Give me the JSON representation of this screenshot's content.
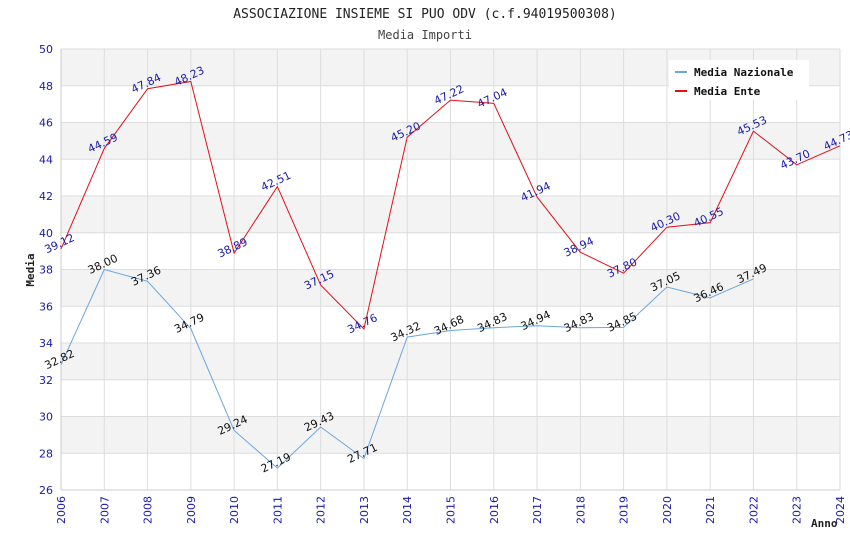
{
  "chart_data": {
    "type": "line",
    "title": "ASSOCIAZIONE INSIEME SI PUO ODV (c.f.94019500308)",
    "subtitle": "Media Importi",
    "xlabel": "Anno",
    "ylabel": "Media",
    "ylim": [
      26,
      50
    ],
    "yticks": [
      26,
      28,
      30,
      32,
      34,
      36,
      38,
      40,
      42,
      44,
      46,
      48,
      50
    ],
    "x": [
      2006,
      2007,
      2008,
      2009,
      2010,
      2011,
      2012,
      2013,
      2014,
      2015,
      2016,
      2017,
      2018,
      2019,
      2020,
      2021,
      2022,
      2023,
      2024
    ],
    "legend_position": "top-right",
    "series": [
      {
        "name": "Media Nazionale",
        "color": "#6aa6e0",
        "values": [
          32.82,
          38.0,
          37.36,
          34.79,
          29.24,
          27.19,
          29.43,
          27.71,
          34.32,
          34.68,
          34.83,
          34.94,
          34.83,
          34.85,
          37.05,
          36.46,
          37.49,
          null,
          null
        ],
        "labels": [
          "32.82",
          "38.00",
          "37.36",
          "34.79",
          "29.24",
          "27.19",
          "29.43",
          "27.71",
          "34.32",
          "34.68",
          "34.83",
          "34.94",
          "34.83",
          "34.85",
          "37.05",
          "36.46",
          "37.49",
          null,
          null
        ]
      },
      {
        "name": "Media Ente",
        "color": "#e0101a",
        "values": [
          39.12,
          44.59,
          47.84,
          48.23,
          38.89,
          42.51,
          37.15,
          34.76,
          45.2,
          47.22,
          47.04,
          41.94,
          38.94,
          37.8,
          40.3,
          40.55,
          45.53,
          43.7,
          44.73
        ],
        "labels": [
          "39.12",
          "44.59",
          "47.84",
          "48.23",
          "38.89",
          "42.51",
          "37.15",
          "34.76",
          "45.20",
          "47.22",
          "47.04",
          "41.94",
          "38.94",
          "37.80",
          "40.30",
          "40.55",
          "45.53",
          "43.70",
          "44.73"
        ]
      }
    ]
  }
}
